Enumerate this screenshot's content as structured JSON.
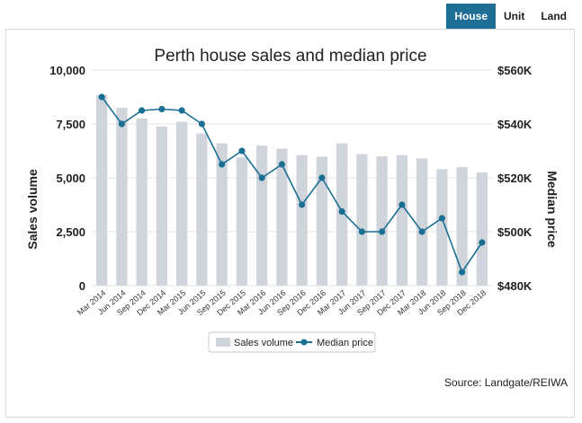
{
  "tabs": [
    {
      "label": "House",
      "active": true
    },
    {
      "label": "Unit",
      "active": false
    },
    {
      "label": "Land",
      "active": false
    }
  ],
  "colors": {
    "tab_active": "#1f6e96",
    "bars": "#d0d4db",
    "line": "#1a6f93",
    "grid": "#e4e4e4"
  },
  "chart_data": {
    "type": "bar",
    "title": "Perth house sales and median price",
    "categories": [
      "Mar 2014",
      "Jun 2014",
      "Sep 2014",
      "Dec 2014",
      "Mar 2015",
      "Jun 2015",
      "Sep 2015",
      "Dec 2015",
      "Mar 2016",
      "Jun 2016",
      "Sep 2016",
      "Dec 2016",
      "Mar 2017",
      "Jun 2017",
      "Sep 2017",
      "Dec 2017",
      "Mar 2018",
      "Jun 2018",
      "Sep 2018",
      "Dec 2018"
    ],
    "series": [
      {
        "name": "Sales volume",
        "type": "bar",
        "axis": "left",
        "values": [
          8850,
          8250,
          7750,
          7380,
          7600,
          7050,
          6600,
          5950,
          6500,
          6350,
          6050,
          5980,
          6600,
          6100,
          6000,
          6050,
          5900,
          5400,
          5500,
          5250
        ]
      },
      {
        "name": "Median price",
        "type": "line",
        "axis": "right",
        "values": [
          550000,
          540000,
          545000,
          545500,
          545000,
          540000,
          525000,
          530000,
          520000,
          525000,
          510000,
          520000,
          507500,
          500000,
          500000,
          510000,
          500000,
          505000,
          485000,
          496000
        ]
      }
    ],
    "y_left": {
      "label": "Sales volume",
      "range": [
        0,
        10000
      ],
      "ticks": [
        "0",
        "2,500",
        "5,000",
        "7,500",
        "10,000"
      ]
    },
    "y_right": {
      "label": "Median price",
      "range": [
        480000,
        560000
      ],
      "ticks": [
        "$480K",
        "$500K",
        "$520K",
        "$540K",
        "$560K"
      ]
    },
    "legend": {
      "position": "bottom",
      "items": [
        "Sales volume",
        "Median price"
      ]
    },
    "grid": true,
    "source": "Source: Landgate/REIWA"
  }
}
